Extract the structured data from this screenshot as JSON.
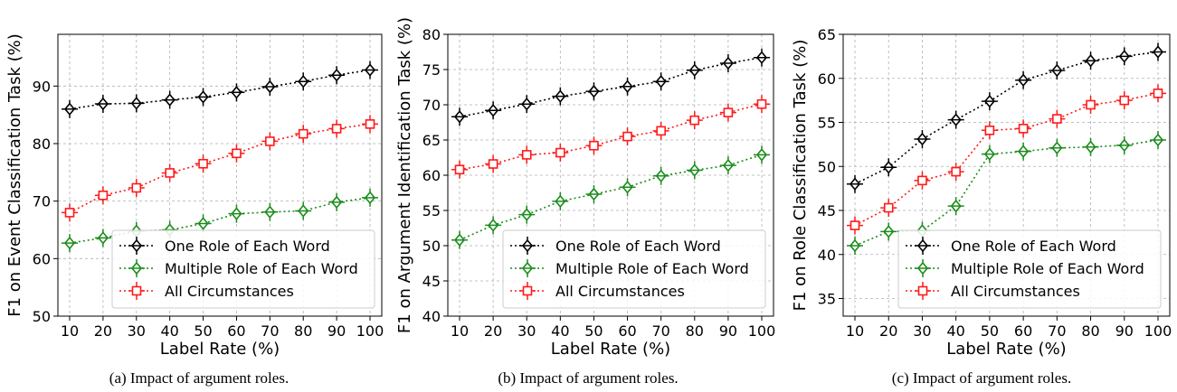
{
  "colors": {
    "one_role": "#000000",
    "multiple_role": "#1a8c1a",
    "all_circ": "#ff1a1a"
  },
  "chart_data": [
    {
      "type": "line",
      "caption": "(a) Impact of argument roles.",
      "xlabel": "Label Rate (%)",
      "ylabel": "F1 on Event Classification Task (%)",
      "x": [
        10,
        20,
        30,
        40,
        50,
        60,
        70,
        80,
        90,
        100
      ],
      "ylim": [
        50,
        99
      ],
      "yticks": [
        50,
        60,
        70,
        80,
        90
      ],
      "grid": true,
      "legend_position": "lower-right",
      "series": [
        {
          "name": "One Role of Each Word",
          "color": "#000000",
          "marker": "diamond",
          "values": [
            86.0,
            86.9,
            87.0,
            87.6,
            88.1,
            88.9,
            89.9,
            90.8,
            91.9,
            92.8
          ]
        },
        {
          "name": "Multiple Role of Each Word",
          "color": "#1a8c1a",
          "marker": "diamond",
          "values": [
            62.7,
            63.6,
            64.8,
            65.0,
            66.1,
            67.8,
            68.1,
            68.3,
            69.8,
            70.6
          ]
        },
        {
          "name": "All Circumstances",
          "color": "#ff1a1a",
          "marker": "square",
          "values": [
            68.0,
            71.0,
            72.3,
            74.9,
            76.5,
            78.3,
            80.4,
            81.7,
            82.6,
            83.4
          ]
        }
      ]
    },
    {
      "type": "line",
      "caption": "(b) Impact of argument roles.",
      "xlabel": "Label Rate (%)",
      "ylabel": "F1 on Argument Identification Task (%)",
      "x": [
        10,
        20,
        30,
        40,
        50,
        60,
        70,
        80,
        90,
        100
      ],
      "ylim": [
        40,
        80
      ],
      "yticks": [
        40,
        45,
        50,
        55,
        60,
        65,
        70,
        75,
        80
      ],
      "grid": true,
      "legend_position": "lower-right",
      "series": [
        {
          "name": "One Role of Each Word",
          "color": "#000000",
          "marker": "diamond",
          "values": [
            68.3,
            69.2,
            70.1,
            71.2,
            71.9,
            72.6,
            73.3,
            74.9,
            75.9,
            76.7
          ]
        },
        {
          "name": "Multiple Role of Each Word",
          "color": "#1a8c1a",
          "marker": "diamond",
          "values": [
            50.8,
            52.9,
            54.4,
            56.3,
            57.3,
            58.3,
            59.9,
            60.7,
            61.4,
            62.9
          ]
        },
        {
          "name": "All Circumstances",
          "color": "#ff1a1a",
          "marker": "square",
          "values": [
            60.8,
            61.6,
            62.9,
            63.2,
            64.2,
            65.5,
            66.3,
            67.8,
            68.9,
            70.1
          ]
        }
      ]
    },
    {
      "type": "line",
      "caption": "(c) Impact of argument roles.",
      "xlabel": "Label Rate (%)",
      "ylabel": "F1 on Role Classification Task (%)",
      "x": [
        10,
        20,
        30,
        40,
        50,
        60,
        70,
        80,
        90,
        100
      ],
      "ylim": [
        33,
        65
      ],
      "yticks": [
        35,
        40,
        45,
        50,
        55,
        60,
        65
      ],
      "grid": true,
      "legend_position": "lower-right",
      "series": [
        {
          "name": "One Role of Each Word",
          "color": "#000000",
          "marker": "diamond",
          "values": [
            48.0,
            49.9,
            53.1,
            55.3,
            57.4,
            59.8,
            60.9,
            62.0,
            62.5,
            63.0
          ]
        },
        {
          "name": "Multiple Role of Each Word",
          "color": "#1a8c1a",
          "marker": "diamond",
          "values": [
            41.0,
            42.6,
            42.7,
            45.5,
            51.4,
            51.7,
            52.1,
            52.2,
            52.4,
            53.0
          ]
        },
        {
          "name": "All Circumstances",
          "color": "#ff1a1a",
          "marker": "square",
          "values": [
            43.3,
            45.3,
            48.4,
            49.4,
            54.1,
            54.3,
            55.4,
            57.0,
            57.5,
            58.3
          ]
        }
      ]
    }
  ]
}
